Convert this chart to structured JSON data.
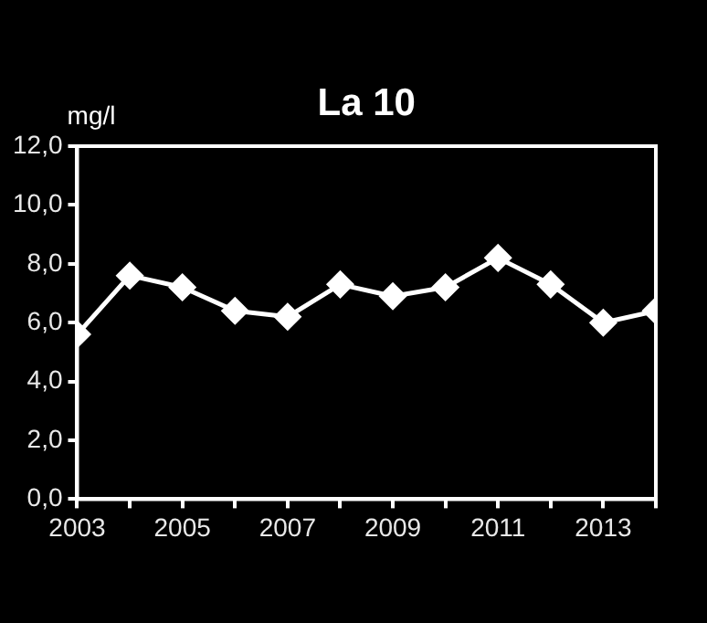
{
  "chart_data": {
    "type": "line",
    "title": "La 10",
    "ylabel": "mg/l",
    "x": [
      2003,
      2004,
      2005,
      2006,
      2007,
      2008,
      2009,
      2010,
      2011,
      2012,
      2013,
      2014
    ],
    "series": [
      {
        "color": "#ffffff",
        "values": [
          5.6,
          7.6,
          7.2,
          6.4,
          6.2,
          7.3,
          6.9,
          7.2,
          8.2,
          7.3,
          6.0,
          6.4
        ]
      }
    ],
    "xlim": [
      2003,
      2014
    ],
    "xticks": [
      2003,
      {
        "value": 2004,
        "label": null
      },
      2005,
      {
        "value": 2006,
        "label": null
      },
      2007,
      {
        "value": 2008,
        "label": null
      },
      2009,
      {
        "value": 2010,
        "label": null
      },
      2011,
      {
        "value": 2012,
        "label": null
      },
      2013,
      {
        "value": 2014,
        "label": null
      }
    ],
    "ylim": [
      0,
      12
    ],
    "yticks": [
      {
        "value": 0,
        "label": "0,0"
      },
      {
        "value": 2,
        "label": "2,0"
      },
      {
        "value": 4,
        "label": "4,0"
      },
      {
        "value": 6,
        "label": "6,0"
      },
      {
        "value": 8,
        "label": "8,0"
      },
      {
        "value": 10,
        "label": "10,0"
      },
      {
        "value": 12,
        "label": "12,0"
      }
    ],
    "grid": false,
    "legend": false,
    "marker": "diamond",
    "line_style": "solid"
  }
}
